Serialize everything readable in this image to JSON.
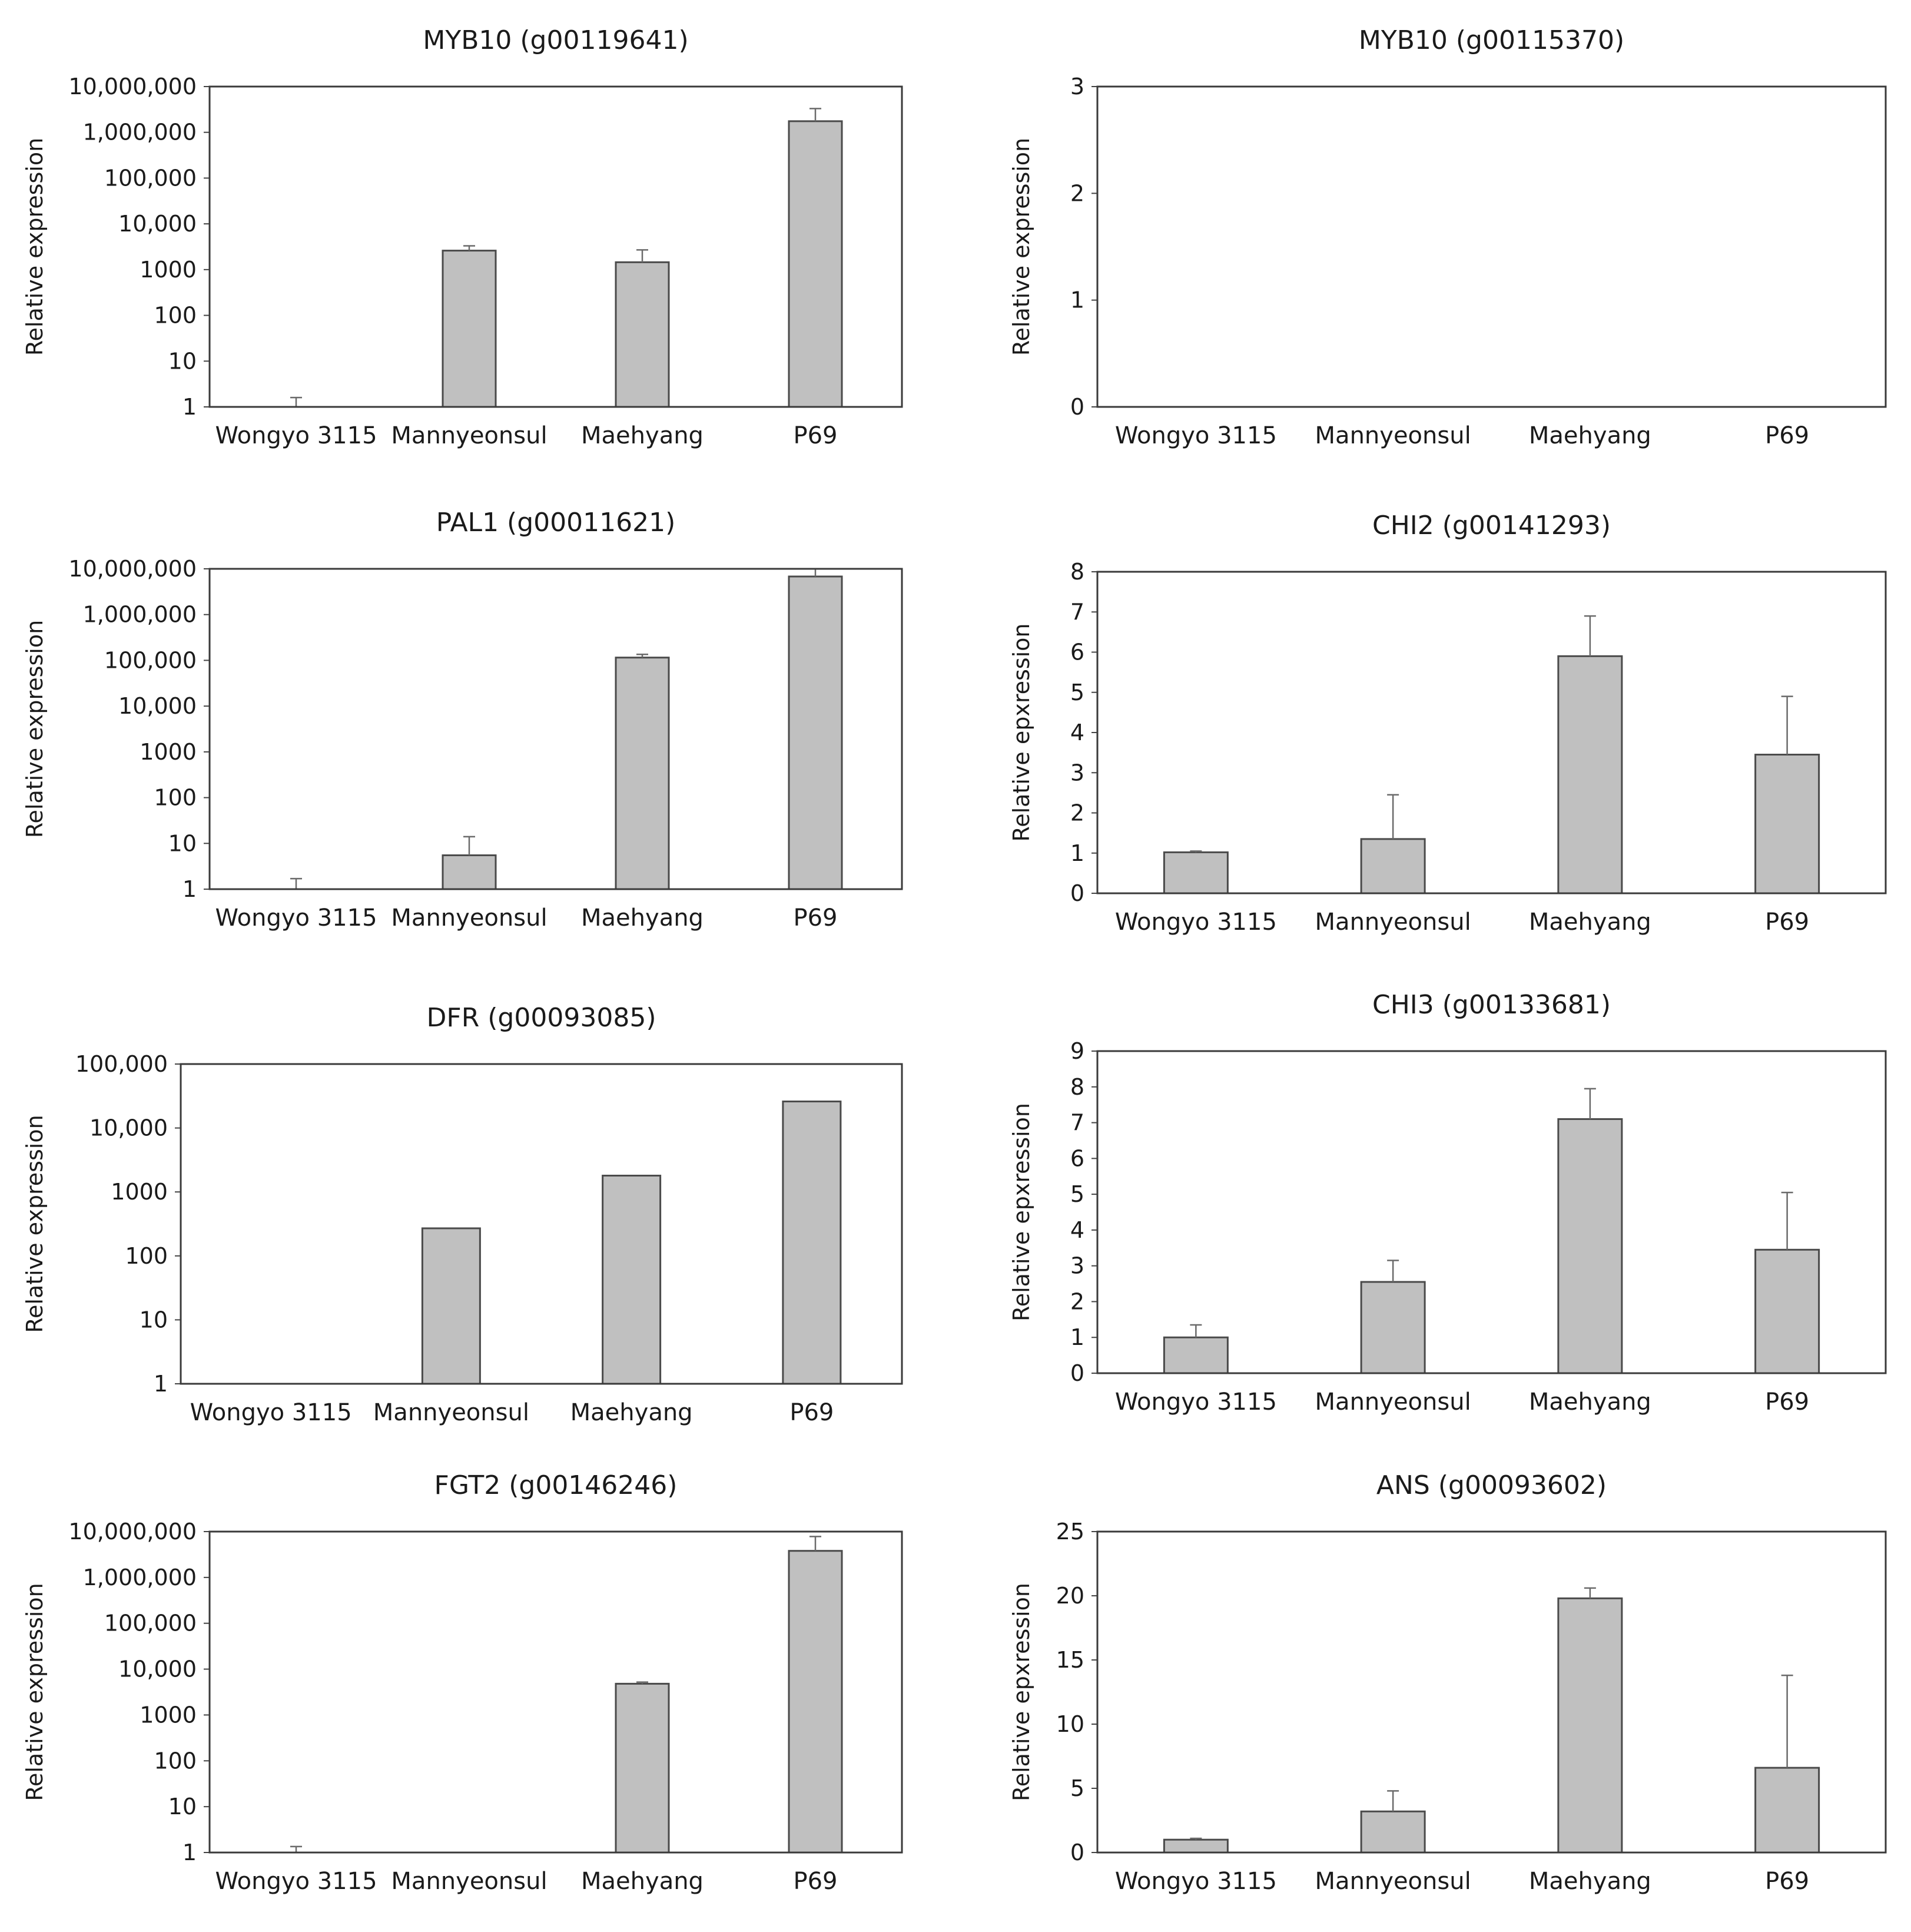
{
  "chart_data": [
    {
      "type": "bar",
      "scale": "log",
      "title": "MYB10 (g00119641)",
      "ylabel": "Relative expression",
      "categories": [
        "Wongyo 3115",
        "Mannyeonsul",
        "Maehyang",
        "P69"
      ],
      "yticks": [
        1,
        10,
        100,
        1000,
        10000,
        100000,
        1000000,
        10000000
      ],
      "ytick_labels": [
        "1",
        "10",
        "100",
        "1000",
        "10,000",
        "100,000",
        "1,000,000",
        "10,000,000"
      ],
      "ylim": [
        1,
        10000000
      ],
      "values": [
        1,
        2600,
        1450,
        1750000
      ],
      "errors_upper": [
        1.6,
        3300,
        2700,
        3300000
      ]
    },
    {
      "type": "bar",
      "scale": "linear",
      "title": "MYB10 (g00115370)",
      "ylabel": "Relative expression",
      "categories": [
        "Wongyo 3115",
        "Mannyeonsul",
        "Maehyang",
        "P69"
      ],
      "yticks": [
        0,
        1,
        2,
        3
      ],
      "ytick_labels": [
        "0",
        "1",
        "2",
        "3"
      ],
      "ylim": [
        0,
        3
      ],
      "values": [
        0,
        0,
        0,
        0
      ],
      "errors_upper": [
        null,
        null,
        null,
        null
      ]
    },
    {
      "type": "bar",
      "scale": "log",
      "title": "PAL1 (g00011621)",
      "ylabel": "Relative expression",
      "categories": [
        "Wongyo 3115",
        "Mannyeonsul",
        "Maehyang",
        "P69"
      ],
      "yticks": [
        1,
        10,
        100,
        1000,
        10000,
        100000,
        1000000,
        10000000
      ],
      "ytick_labels": [
        "1",
        "10",
        "100",
        "1000",
        "10,000",
        "100,000",
        "1,000,000",
        "10,000,000"
      ],
      "ylim": [
        1,
        10000000
      ],
      "values": [
        1,
        5.5,
        115000,
        6800000
      ],
      "errors_upper": [
        1.7,
        14,
        135000,
        10000000
      ]
    },
    {
      "type": "bar",
      "scale": "linear",
      "title": "CHI2 (g00141293)",
      "ylabel": "Relative epxression",
      "categories": [
        "Wongyo 3115",
        "Mannyeonsul",
        "Maehyang",
        "P69"
      ],
      "yticks": [
        0,
        1,
        2,
        3,
        4,
        5,
        6,
        7,
        8
      ],
      "ytick_labels": [
        "0",
        "1",
        "2",
        "3",
        "4",
        "5",
        "6",
        "7",
        "8"
      ],
      "ylim": [
        0,
        8
      ],
      "values": [
        1.02,
        1.35,
        5.9,
        3.45
      ],
      "errors_upper": [
        1.05,
        2.45,
        6.9,
        4.9
      ]
    },
    {
      "type": "bar",
      "scale": "log",
      "title": "DFR (g00093085)",
      "ylabel": "Relative expression",
      "categories": [
        "Wongyo 3115",
        "Mannyeonsul",
        "Maehyang",
        "P69"
      ],
      "yticks": [
        1,
        10,
        100,
        1000,
        10000,
        100000
      ],
      "ytick_labels": [
        "1",
        "10",
        "100",
        "1000",
        "10,000",
        "100,000"
      ],
      "ylim": [
        1,
        100000
      ],
      "values": [
        1,
        270,
        1800,
        26000
      ],
      "errors_upper": [
        null,
        null,
        null,
        null
      ]
    },
    {
      "type": "bar",
      "scale": "linear",
      "title": "CHI3 (g00133681)",
      "ylabel": "Relative epxression",
      "categories": [
        "Wongyo 3115",
        "Mannyeonsul",
        "Maehyang",
        "P69"
      ],
      "yticks": [
        0,
        1,
        2,
        3,
        4,
        5,
        6,
        7,
        8,
        9
      ],
      "ytick_labels": [
        "0",
        "1",
        "2",
        "3",
        "4",
        "5",
        "6",
        "7",
        "8",
        "9"
      ],
      "ylim": [
        0,
        9
      ],
      "values": [
        1.0,
        2.55,
        7.1,
        3.45
      ],
      "errors_upper": [
        1.35,
        3.15,
        7.95,
        5.05
      ]
    },
    {
      "type": "bar",
      "scale": "log",
      "title": "FGT2 (g00146246)",
      "ylabel": "Relative expression",
      "categories": [
        "Wongyo 3115",
        "Mannyeonsul",
        "Maehyang",
        "P69"
      ],
      "yticks": [
        1,
        10,
        100,
        1000,
        10000,
        100000,
        1000000,
        10000000
      ],
      "ytick_labels": [
        "1",
        "10",
        "100",
        "1000",
        "10,000",
        "100,000",
        "1,000,000",
        "10,000,000"
      ],
      "ylim": [
        1,
        10000000
      ],
      "values": [
        1,
        1,
        4800,
        3800000
      ],
      "errors_upper": [
        1.35,
        null,
        5200,
        7800000
      ]
    },
    {
      "type": "bar",
      "scale": "linear",
      "title": "ANS (g00093602)",
      "ylabel": "Relative epxression",
      "categories": [
        "Wongyo 3115",
        "Mannyeonsul",
        "Maehyang",
        "P69"
      ],
      "yticks": [
        0,
        5,
        10,
        15,
        20,
        25
      ],
      "ytick_labels": [
        "0",
        "5",
        "10",
        "15",
        "20",
        "25"
      ],
      "ylim": [
        0,
        25
      ],
      "values": [
        1.0,
        3.2,
        19.8,
        6.6
      ],
      "errors_upper": [
        1.1,
        4.8,
        20.6,
        13.8
      ]
    }
  ]
}
